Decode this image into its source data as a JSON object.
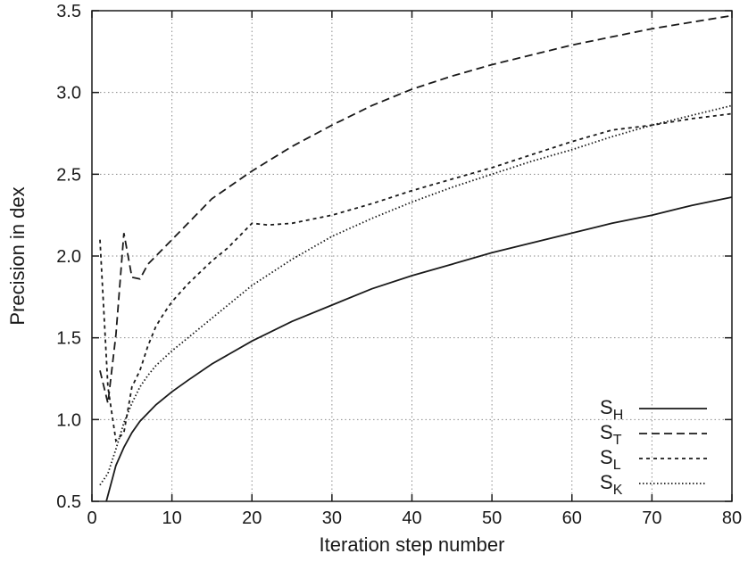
{
  "chart_data": {
    "type": "line",
    "title": "",
    "xlabel": "Iteration step number",
    "ylabel": "Precision in dex",
    "xlim": [
      0,
      80
    ],
    "ylim": [
      0.5,
      3.5
    ],
    "xticks": [
      0,
      10,
      20,
      30,
      40,
      50,
      60,
      70,
      80
    ],
    "yticks": [
      0.5,
      1.0,
      1.5,
      2.0,
      2.5,
      3.0,
      3.5
    ],
    "xtick_labels": [
      "0",
      "10",
      "20",
      "30",
      "40",
      "50",
      "60",
      "70",
      "80"
    ],
    "ytick_labels": [
      "0.5",
      "1.0",
      "1.5",
      "2.0",
      "2.5",
      "3.0",
      "3.5"
    ],
    "grid": true,
    "legend_position": "bottom-right",
    "series": [
      {
        "name": "S",
        "sub": "H",
        "dash": "solid",
        "x": [
          1.8,
          3,
          4,
          5,
          6,
          8,
          10,
          12,
          15,
          20,
          25,
          30,
          35,
          40,
          45,
          50,
          55,
          60,
          65,
          70,
          75,
          80
        ],
        "y": [
          0.5,
          0.72,
          0.83,
          0.92,
          0.99,
          1.09,
          1.17,
          1.24,
          1.34,
          1.48,
          1.6,
          1.7,
          1.8,
          1.88,
          1.95,
          2.02,
          2.08,
          2.14,
          2.2,
          2.25,
          2.31,
          2.36
        ]
      },
      {
        "name": "S",
        "sub": "T",
        "dash": "long-dash",
        "x": [
          1,
          2,
          3,
          4,
          5,
          6,
          7,
          8,
          10,
          12,
          15,
          20,
          25,
          30,
          35,
          40,
          45,
          50,
          55,
          60,
          65,
          70,
          75,
          80
        ],
        "y": [
          1.3,
          1.1,
          1.52,
          2.14,
          1.87,
          1.86,
          1.95,
          2.0,
          2.1,
          2.2,
          2.35,
          2.52,
          2.67,
          2.8,
          2.92,
          3.02,
          3.1,
          3.17,
          3.23,
          3.29,
          3.34,
          3.39,
          3.43,
          3.47
        ]
      },
      {
        "name": "S",
        "sub": "L",
        "dash": "short-dash",
        "x": [
          1,
          2,
          3,
          4,
          5,
          6,
          7,
          8,
          9,
          10,
          12,
          15,
          17,
          20,
          22,
          25,
          30,
          35,
          40,
          45,
          50,
          55,
          60,
          65,
          70,
          75,
          80
        ],
        "y": [
          2.1,
          1.2,
          0.87,
          0.92,
          1.2,
          1.3,
          1.45,
          1.57,
          1.65,
          1.72,
          1.83,
          1.97,
          2.05,
          2.2,
          2.19,
          2.2,
          2.25,
          2.32,
          2.4,
          2.47,
          2.54,
          2.62,
          2.7,
          2.77,
          2.8,
          2.84,
          2.87
        ]
      },
      {
        "name": "S",
        "sub": "K",
        "dash": "dotted",
        "x": [
          1,
          2,
          3,
          4,
          5,
          6,
          7,
          8,
          10,
          12,
          15,
          20,
          25,
          30,
          35,
          40,
          45,
          50,
          55,
          60,
          65,
          70,
          75,
          80
        ],
        "y": [
          0.6,
          0.67,
          0.82,
          0.98,
          1.1,
          1.2,
          1.27,
          1.33,
          1.42,
          1.5,
          1.62,
          1.82,
          1.98,
          2.12,
          2.23,
          2.33,
          2.42,
          2.5,
          2.58,
          2.65,
          2.73,
          2.8,
          2.86,
          2.92
        ]
      }
    ]
  }
}
